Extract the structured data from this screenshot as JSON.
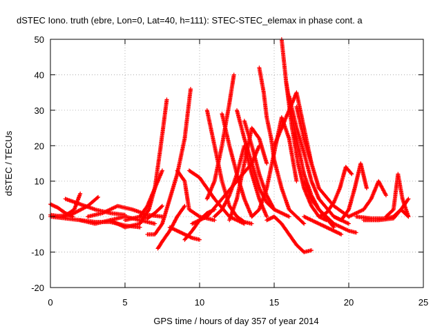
{
  "chart_data": {
    "type": "scatter",
    "title": "dSTEC Iono. truth (ebre, Lon=0, Lat=40, h=111): STEC-STEC_elemax in phase cont. a",
    "xlabel": "GPS time / hours of day 357 of year 2014",
    "ylabel": "dSTEC  / TECUs",
    "xlim": [
      0,
      25
    ],
    "ylim": [
      -20,
      50
    ],
    "xticks": [
      0,
      5,
      10,
      15,
      20,
      25
    ],
    "yticks": [
      -20,
      -10,
      0,
      10,
      20,
      30,
      40,
      50
    ],
    "xtick_labels": [
      "0",
      "5",
      "10",
      "15",
      "20",
      "25"
    ],
    "ytick_labels": [
      "-20",
      "-10",
      "0",
      "10",
      "20",
      "30",
      "40",
      "50"
    ],
    "grid": true,
    "marker": "plus",
    "series_color": "#ff0000",
    "series": [
      {
        "x": [
          0.0,
          0.5,
          1.0,
          1.5
        ],
        "y": [
          3.5,
          2.5,
          1.0,
          0.0
        ]
      },
      {
        "x": [
          0.0,
          0.5,
          1.0,
          1.6,
          2.0
        ],
        "y": [
          0.5,
          0.2,
          0.3,
          2.0,
          6.5
        ]
      },
      {
        "x": [
          0.0,
          1.0,
          2.0,
          3.0,
          4.0,
          5.0,
          6.0
        ],
        "y": [
          0.0,
          -0.5,
          -1.0,
          -1.5,
          -1.5,
          -2.5,
          -3.0
        ]
      },
      {
        "x": [
          0.8,
          1.5,
          2.5,
          3.2
        ],
        "y": [
          0.0,
          0.8,
          3.0,
          5.5
        ]
      },
      {
        "x": [
          1.0,
          2.0,
          3.0,
          4.0,
          5.0
        ],
        "y": [
          5.0,
          3.5,
          2.0,
          1.0,
          0.5
        ]
      },
      {
        "x": [
          2.0,
          3.0,
          4.0,
          5.0,
          6.0,
          7.0
        ],
        "y": [
          -1.0,
          -2.0,
          -1.0,
          0.0,
          -1.0,
          -2.0
        ]
      },
      {
        "x": [
          2.5,
          3.5,
          4.5,
          5.5,
          6.5,
          7.5
        ],
        "y": [
          0.0,
          1.0,
          3.0,
          2.0,
          0.5,
          0.0
        ]
      },
      {
        "x": [
          4.0,
          5.0,
          6.0,
          6.6,
          7.0,
          7.4,
          7.8
        ],
        "y": [
          -1.0,
          -3.0,
          -2.0,
          2.0,
          8.0,
          20.0,
          33.0
        ]
      },
      {
        "x": [
          5.0,
          6.0,
          6.5,
          7.0,
          7.5
        ],
        "y": [
          -1.0,
          0.0,
          3.0,
          8.0,
          13.0
        ]
      },
      {
        "x": [
          6.0,
          6.5,
          7.0,
          7.5
        ],
        "y": [
          0.0,
          -0.5,
          1.0,
          3.0
        ]
      },
      {
        "x": [
          6.5,
          7.0,
          7.5,
          8.0,
          8.5,
          9.0,
          9.4
        ],
        "y": [
          -5.0,
          -5.0,
          -2.0,
          5.0,
          12.0,
          22.0,
          36.0
        ]
      },
      {
        "x": [
          7.2,
          7.5,
          8.0,
          8.5,
          9.0
        ],
        "y": [
          -9.0,
          -7.0,
          -4.0,
          0.0,
          3.0
        ]
      },
      {
        "x": [
          8.0,
          8.5,
          9.0,
          9.5,
          10.0
        ],
        "y": [
          -3.0,
          -4.0,
          -5.0,
          -6.0,
          -6.5
        ]
      },
      {
        "x": [
          8.5,
          9.0,
          9.3,
          10.0,
          11.0
        ],
        "y": [
          13.0,
          10.0,
          2.0,
          0.0,
          -1.0
        ]
      },
      {
        "x": [
          9.0,
          9.5,
          10.0,
          10.5,
          11.0
        ],
        "y": [
          -6.5,
          -4.0,
          -1.0,
          1.0,
          2.0
        ]
      },
      {
        "x": [
          9.3,
          10.0,
          11.0,
          12.0,
          13.0
        ],
        "y": [
          13.0,
          11.0,
          5.0,
          0.0,
          -2.0
        ]
      },
      {
        "x": [
          9.5,
          10.5,
          11.5,
          12.5,
          13.5,
          14.0
        ],
        "y": [
          -2.0,
          0.0,
          5.0,
          10.0,
          15.0,
          20.0
        ]
      },
      {
        "x": [
          10.5,
          11.0,
          11.5,
          12.0,
          12.5,
          13.0,
          13.5
        ],
        "y": [
          30.0,
          20.0,
          10.0,
          3.0,
          0.0,
          -1.5,
          -2.0
        ]
      },
      {
        "x": [
          10.5,
          11.0,
          11.5,
          12.0,
          12.3
        ],
        "y": [
          5.0,
          10.0,
          20.0,
          32.0,
          40.0
        ]
      },
      {
        "x": [
          11.0,
          11.5,
          12.0,
          12.5,
          13.0,
          13.5,
          14.0,
          14.5
        ],
        "y": [
          0.0,
          2.0,
          6.0,
          12.0,
          20.0,
          12.0,
          5.0,
          0.0
        ]
      },
      {
        "x": [
          11.5,
          12.0,
          12.5,
          13.0,
          13.5
        ],
        "y": [
          29.0,
          20.0,
          12.0,
          5.0,
          0.0
        ]
      },
      {
        "x": [
          12.0,
          12.5,
          13.0,
          13.5,
          14.0,
          14.5
        ],
        "y": [
          -1.0,
          5.0,
          15.0,
          25.0,
          22.0,
          15.0
        ]
      },
      {
        "x": [
          12.5,
          13.0,
          13.5,
          14.0,
          14.5,
          15.0,
          16.0
        ],
        "y": [
          30.0,
          22.0,
          15.0,
          8.0,
          4.0,
          2.0,
          0.0
        ]
      },
      {
        "x": [
          13.0,
          13.5,
          14.0,
          14.5,
          15.0
        ],
        "y": [
          27.0,
          20.0,
          12.0,
          6.0,
          2.0
        ]
      },
      {
        "x": [
          13.5,
          14.0,
          14.5,
          15.0,
          15.5,
          16.0,
          16.5
        ],
        "y": [
          0.0,
          2.0,
          8.0,
          18.0,
          28.0,
          22.0,
          10.0
        ]
      },
      {
        "x": [
          14.0,
          14.3,
          14.5,
          14.8,
          15.0,
          15.5,
          16.0,
          17.0
        ],
        "y": [
          42.0,
          35.0,
          28.0,
          22.0,
          16.0,
          8.0,
          2.0,
          -2.0
        ]
      },
      {
        "x": [
          14.5,
          15.0,
          15.5,
          16.0,
          16.5,
          17.0,
          17.5
        ],
        "y": [
          -1.0,
          0.0,
          -2.0,
          -5.0,
          -8.0,
          -10.0,
          -9.5
        ]
      },
      {
        "x": [
          15.0,
          15.5,
          16.0,
          16.5,
          17.0,
          17.5
        ],
        "y": [
          20.0,
          25.0,
          30.0,
          35.0,
          25.0,
          15.0
        ]
      },
      {
        "x": [
          15.5,
          15.8,
          16.2,
          16.6,
          17.0,
          17.5,
          18.0,
          18.5
        ],
        "y": [
          50.0,
          38.0,
          25.0,
          15.0,
          8.0,
          3.0,
          0.0,
          -1.0
        ]
      },
      {
        "x": [
          15.8,
          16.2,
          16.6,
          17.0,
          17.5,
          18.0,
          19.0
        ],
        "y": [
          38.0,
          28.0,
          20.0,
          12.0,
          6.0,
          2.0,
          -3.0
        ]
      },
      {
        "x": [
          16.0,
          16.5,
          17.0,
          17.5,
          18.0,
          19.0,
          20.0
        ],
        "y": [
          34.0,
          25.0,
          18.0,
          10.0,
          5.0,
          0.0,
          -2.0
        ]
      },
      {
        "x": [
          16.5,
          17.0,
          17.5,
          18.0,
          19.0,
          20.0
        ],
        "y": [
          31.0,
          22.0,
          15.0,
          8.0,
          3.0,
          0.0
        ]
      },
      {
        "x": [
          17.0,
          17.5,
          18.0,
          19.0,
          20.0,
          20.5
        ],
        "y": [
          10.0,
          5.0,
          2.0,
          -2.0,
          -4.0,
          -4.5
        ]
      },
      {
        "x": [
          17.0,
          17.5,
          18.0,
          18.5,
          19.0,
          19.5
        ],
        "y": [
          0.0,
          -1.0,
          -2.0,
          -3.0,
          -4.0,
          -5.0
        ]
      },
      {
        "x": [
          18.0,
          18.5,
          19.0,
          19.4,
          19.8,
          20.2
        ],
        "y": [
          0.0,
          1.0,
          4.0,
          8.0,
          14.0,
          12.0
        ]
      },
      {
        "x": [
          19.0,
          19.5,
          20.0,
          20.4,
          20.8,
          21.2
        ],
        "y": [
          0.0,
          -1.0,
          2.0,
          8.0,
          15.0,
          8.0
        ]
      },
      {
        "x": [
          20.0,
          21.0,
          21.5,
          22.0,
          22.5
        ],
        "y": [
          0.0,
          2.0,
          5.0,
          10.0,
          6.0
        ]
      },
      {
        "x": [
          20.5,
          21.5,
          22.5,
          23.0,
          23.5,
          24.0
        ],
        "y": [
          0.0,
          -0.5,
          -0.5,
          0.0,
          2.0,
          5.0
        ]
      },
      {
        "x": [
          21.0,
          22.0,
          23.0,
          23.5,
          24.0
        ],
        "y": [
          -1.0,
          -1.0,
          -0.5,
          2.0,
          0.0
        ]
      },
      {
        "x": [
          22.5,
          23.0,
          23.3,
          23.6,
          24.0
        ],
        "y": [
          0.0,
          2.0,
          12.0,
          5.0,
          0.0
        ]
      }
    ]
  }
}
